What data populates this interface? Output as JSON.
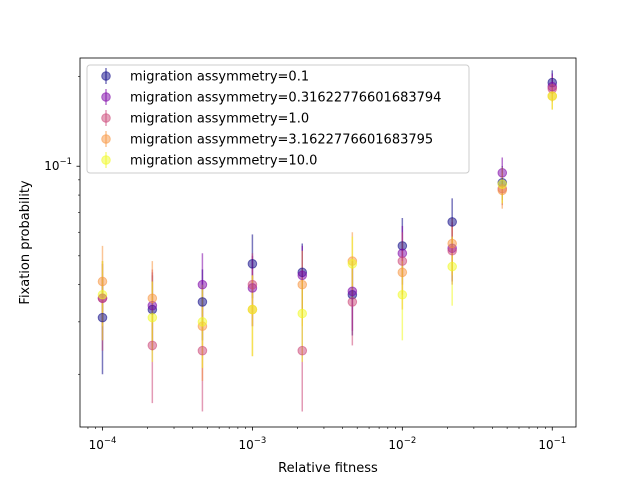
{
  "chart_data": {
    "type": "scatter",
    "title": "",
    "xlabel": "Relative fitness",
    "ylabel": "Fixation probability",
    "xscale": "log",
    "yscale": "log",
    "xlim": [
      7.08e-05,
      0.144
    ],
    "ylim": [
      0.0133,
      0.231
    ],
    "x_ticks": [
      {
        "value": 0.0001,
        "base": "10",
        "exp": "−4"
      },
      {
        "value": 0.001,
        "base": "10",
        "exp": "−3"
      },
      {
        "value": 0.01,
        "base": "10",
        "exp": "−2"
      },
      {
        "value": 0.1,
        "base": "10",
        "exp": "−1"
      }
    ],
    "y_ticks": [
      {
        "value": 0.1,
        "base": "10",
        "exp": "−1"
      }
    ],
    "grid": false,
    "legend_position": "top-left",
    "x": [
      0.0001,
      0.000215,
      0.000464,
      0.001,
      0.00215,
      0.00464,
      0.01,
      0.0215,
      0.0464,
      0.1
    ],
    "series": [
      {
        "name": "migration assymmetry=0.1",
        "color": "#0d0887",
        "y": [
          0.031,
          0.033,
          0.035,
          0.047,
          0.044,
          0.037,
          0.054,
          0.065,
          0.088,
          0.191
        ],
        "y_low": [
          0.02,
          0.024,
          0.026,
          0.036,
          0.033,
          0.027,
          0.043,
          0.052,
          0.077,
          0.172
        ],
        "y_high": [
          0.042,
          0.043,
          0.045,
          0.059,
          0.055,
          0.048,
          0.067,
          0.078,
          0.1,
          0.21
        ]
      },
      {
        "name": "migration assymmetry=0.31622776601683794",
        "color": "#7e03a8",
        "y": [
          0.036,
          0.034,
          0.04,
          0.039,
          0.043,
          0.038,
          0.051,
          0.053,
          0.095,
          0.185
        ],
        "y_low": [
          0.026,
          0.025,
          0.03,
          0.029,
          0.033,
          0.028,
          0.04,
          0.041,
          0.082,
          0.165
        ],
        "y_high": [
          0.047,
          0.044,
          0.051,
          0.05,
          0.054,
          0.048,
          0.063,
          0.065,
          0.107,
          0.205
        ]
      },
      {
        "name": "migration assymmetry=1.0",
        "color": "#cc4778",
        "y": [
          0.036,
          0.025,
          0.024,
          0.04,
          0.024,
          0.035,
          0.048,
          0.052,
          0.084,
          0.182
        ],
        "y_low": [
          0.024,
          0.016,
          0.015,
          0.029,
          0.015,
          0.025,
          0.037,
          0.04,
          0.074,
          0.165
        ],
        "y_high": [
          0.048,
          0.045,
          0.034,
          0.051,
          0.045,
          0.046,
          0.06,
          0.064,
          0.098,
          0.2
        ]
      },
      {
        "name": "migration assymmetry=3.1622776601683795",
        "color": "#f89540",
        "y": [
          0.041,
          0.036,
          0.029,
          0.033,
          0.04,
          0.048,
          0.044,
          0.055,
          0.083,
          0.172
        ],
        "y_low": [
          0.029,
          0.024,
          0.019,
          0.023,
          0.029,
          0.037,
          0.033,
          0.043,
          0.072,
          0.155
        ],
        "y_high": [
          0.054,
          0.048,
          0.039,
          0.043,
          0.052,
          0.06,
          0.056,
          0.067,
          0.095,
          0.19
        ]
      },
      {
        "name": "migration assymmetry=10.0",
        "color": "#f0f921",
        "y": [
          0.037,
          0.031,
          0.03,
          0.033,
          0.032,
          0.047,
          0.037,
          0.046,
          0.087,
          0.172
        ],
        "y_low": [
          0.026,
          0.022,
          0.021,
          0.023,
          0.022,
          0.036,
          0.026,
          0.034,
          0.075,
          0.155
        ],
        "y_high": [
          0.048,
          0.041,
          0.04,
          0.043,
          0.042,
          0.058,
          0.048,
          0.058,
          0.099,
          0.19
        ]
      }
    ]
  }
}
